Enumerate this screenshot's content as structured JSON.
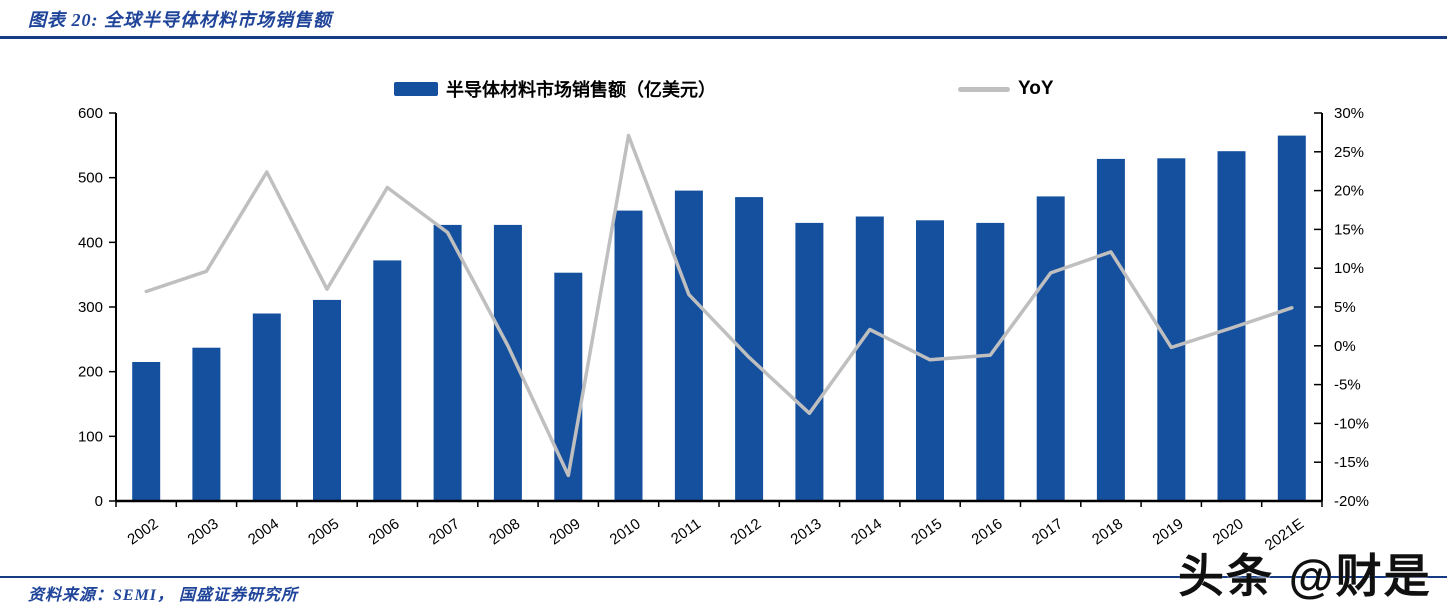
{
  "header": {
    "title": "图表 20:  全球半导体材料市场销售额"
  },
  "legend": {
    "bars_label": "半导体材料市场销售额（亿美元）",
    "line_label": "YoY"
  },
  "footer": {
    "source": "资料来源：SEMI，  国盛证券研究所"
  },
  "watermark": "头条 @财是",
  "colors": {
    "bar": "#15509F",
    "line": "#BFBFBF",
    "rule": "#163B82",
    "title_text": "#1F4499",
    "axis": "#000000",
    "tick_label": "#000000"
  },
  "chart_data": {
    "type": "bar",
    "subtype": "bar+line-dual-axis",
    "title": "全球半导体材料市场销售额",
    "categories": [
      "2002",
      "2003",
      "2004",
      "2005",
      "2006",
      "2007",
      "2008",
      "2009",
      "2010",
      "2011",
      "2012",
      "2013",
      "2014",
      "2015",
      "2016",
      "2017",
      "2018",
      "2019",
      "2020",
      "2021E"
    ],
    "series": [
      {
        "name": "半导体材料市场销售额（亿美元）",
        "type": "bar",
        "axis": "left",
        "values": [
          215,
          237,
          290,
          311,
          372,
          427,
          427,
          353,
          449,
          480,
          470,
          430,
          440,
          434,
          430,
          471,
          529,
          530,
          541,
          565
        ]
      },
      {
        "name": "YoY",
        "type": "line",
        "axis": "right",
        "unit": "%",
        "values": [
          7.0,
          9.6,
          22.4,
          7.3,
          20.4,
          14.6,
          0.0,
          -16.7,
          27.1,
          6.6,
          -1.5,
          -8.7,
          2.1,
          -1.8,
          -1.2,
          9.4,
          12.1,
          -0.2,
          2.3,
          4.9
        ]
      }
    ],
    "left_axis": {
      "min": 0,
      "max": 600,
      "tick_labels": [
        "0",
        "100",
        "200",
        "300",
        "400",
        "500",
        "600"
      ]
    },
    "right_axis": {
      "min": -20,
      "max": 30,
      "tick_labels": [
        "30%",
        "25%",
        "20%",
        "15%",
        "10%",
        "5%",
        "0%",
        "-5%",
        "-10%",
        "-15%",
        "-20%"
      ]
    },
    "grid": false,
    "legend_position": "top"
  }
}
